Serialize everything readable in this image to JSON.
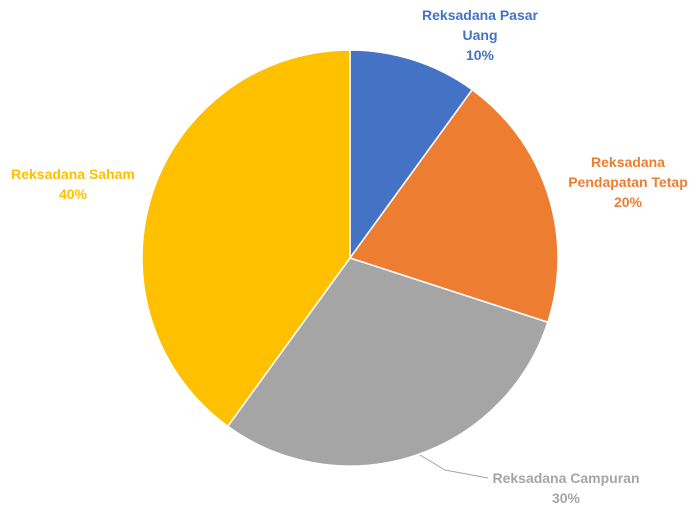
{
  "chart_data": {
    "type": "pie",
    "categories": [
      "Reksadana Pasar Uang",
      "Reksadana Pendapatan Tetap",
      "Reksadana Campuran",
      "Reksadana Saham"
    ],
    "values": [
      10,
      20,
      30,
      40
    ],
    "value_labels": [
      "10%",
      "20%",
      "30%",
      "40%"
    ],
    "colors": [
      "#4472c4",
      "#ed7d31",
      "#a5a5a5",
      "#ffc000"
    ]
  }
}
